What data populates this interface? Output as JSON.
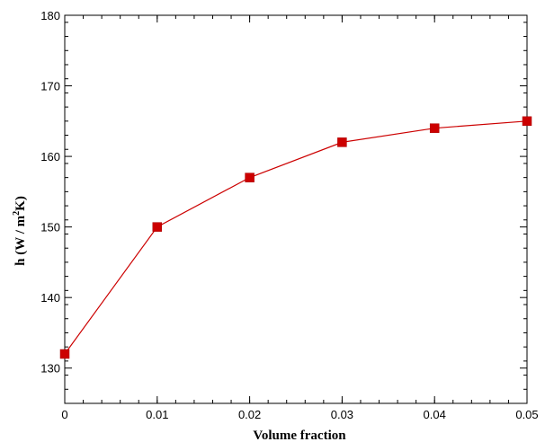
{
  "chart_data": {
    "type": "line",
    "title": "",
    "xlabel": "Volume fraction",
    "ylabel": {
      "prefix": "h (W / m",
      "sup": "2",
      "suffix": "K)"
    },
    "xlim": [
      0,
      0.05
    ],
    "ylim": [
      125,
      180
    ],
    "x_ticks": [
      0,
      0.01,
      0.02,
      0.03,
      0.04,
      0.05
    ],
    "x_tick_labels": [
      "0",
      "0.01",
      "0.02",
      "0.03",
      "0.04",
      "0.05"
    ],
    "y_ticks": [
      130,
      140,
      150,
      160,
      170,
      180
    ],
    "y_tick_labels": [
      "130",
      "140",
      "150",
      "160",
      "170",
      "180"
    ],
    "x_minor_step": 0.002,
    "y_minor_step": 2,
    "grid": false,
    "legend": "none",
    "series": [
      {
        "x": [
          0,
          0.01,
          0.02,
          0.03,
          0.04,
          0.05
        ],
        "y": [
          132,
          150,
          157,
          162,
          164,
          165
        ],
        "color": "#cc0000",
        "marker": "square"
      }
    ]
  }
}
